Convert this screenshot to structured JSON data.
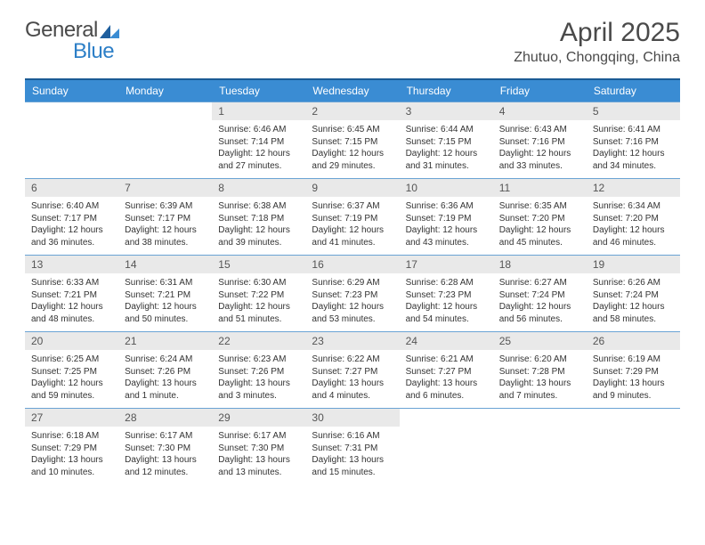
{
  "logo": {
    "text1": "General",
    "text2": "Blue"
  },
  "title": "April 2025",
  "location": "Zhutuo, Chongqing, China",
  "colors": {
    "header_bg": "#3a8cd3",
    "header_border_top": "#1a5a94",
    "cell_border": "#6aa3d4",
    "daynum_bg": "#e9e9e9",
    "logo_gray": "#4a4a4a",
    "logo_blue": "#2d7fc7"
  },
  "weekdays": [
    "Sunday",
    "Monday",
    "Tuesday",
    "Wednesday",
    "Thursday",
    "Friday",
    "Saturday"
  ],
  "weeks": [
    [
      {
        "empty": true
      },
      {
        "empty": true
      },
      {
        "num": "1",
        "sunrise": "6:46 AM",
        "sunset": "7:14 PM",
        "daylight": "12 hours and 27 minutes."
      },
      {
        "num": "2",
        "sunrise": "6:45 AM",
        "sunset": "7:15 PM",
        "daylight": "12 hours and 29 minutes."
      },
      {
        "num": "3",
        "sunrise": "6:44 AM",
        "sunset": "7:15 PM",
        "daylight": "12 hours and 31 minutes."
      },
      {
        "num": "4",
        "sunrise": "6:43 AM",
        "sunset": "7:16 PM",
        "daylight": "12 hours and 33 minutes."
      },
      {
        "num": "5",
        "sunrise": "6:41 AM",
        "sunset": "7:16 PM",
        "daylight": "12 hours and 34 minutes."
      }
    ],
    [
      {
        "num": "6",
        "sunrise": "6:40 AM",
        "sunset": "7:17 PM",
        "daylight": "12 hours and 36 minutes."
      },
      {
        "num": "7",
        "sunrise": "6:39 AM",
        "sunset": "7:17 PM",
        "daylight": "12 hours and 38 minutes."
      },
      {
        "num": "8",
        "sunrise": "6:38 AM",
        "sunset": "7:18 PM",
        "daylight": "12 hours and 39 minutes."
      },
      {
        "num": "9",
        "sunrise": "6:37 AM",
        "sunset": "7:19 PM",
        "daylight": "12 hours and 41 minutes."
      },
      {
        "num": "10",
        "sunrise": "6:36 AM",
        "sunset": "7:19 PM",
        "daylight": "12 hours and 43 minutes."
      },
      {
        "num": "11",
        "sunrise": "6:35 AM",
        "sunset": "7:20 PM",
        "daylight": "12 hours and 45 minutes."
      },
      {
        "num": "12",
        "sunrise": "6:34 AM",
        "sunset": "7:20 PM",
        "daylight": "12 hours and 46 minutes."
      }
    ],
    [
      {
        "num": "13",
        "sunrise": "6:33 AM",
        "sunset": "7:21 PM",
        "daylight": "12 hours and 48 minutes."
      },
      {
        "num": "14",
        "sunrise": "6:31 AM",
        "sunset": "7:21 PM",
        "daylight": "12 hours and 50 minutes."
      },
      {
        "num": "15",
        "sunrise": "6:30 AM",
        "sunset": "7:22 PM",
        "daylight": "12 hours and 51 minutes."
      },
      {
        "num": "16",
        "sunrise": "6:29 AM",
        "sunset": "7:23 PM",
        "daylight": "12 hours and 53 minutes."
      },
      {
        "num": "17",
        "sunrise": "6:28 AM",
        "sunset": "7:23 PM",
        "daylight": "12 hours and 54 minutes."
      },
      {
        "num": "18",
        "sunrise": "6:27 AM",
        "sunset": "7:24 PM",
        "daylight": "12 hours and 56 minutes."
      },
      {
        "num": "19",
        "sunrise": "6:26 AM",
        "sunset": "7:24 PM",
        "daylight": "12 hours and 58 minutes."
      }
    ],
    [
      {
        "num": "20",
        "sunrise": "6:25 AM",
        "sunset": "7:25 PM",
        "daylight": "12 hours and 59 minutes."
      },
      {
        "num": "21",
        "sunrise": "6:24 AM",
        "sunset": "7:26 PM",
        "daylight": "13 hours and 1 minute."
      },
      {
        "num": "22",
        "sunrise": "6:23 AM",
        "sunset": "7:26 PM",
        "daylight": "13 hours and 3 minutes."
      },
      {
        "num": "23",
        "sunrise": "6:22 AM",
        "sunset": "7:27 PM",
        "daylight": "13 hours and 4 minutes."
      },
      {
        "num": "24",
        "sunrise": "6:21 AM",
        "sunset": "7:27 PM",
        "daylight": "13 hours and 6 minutes."
      },
      {
        "num": "25",
        "sunrise": "6:20 AM",
        "sunset": "7:28 PM",
        "daylight": "13 hours and 7 minutes."
      },
      {
        "num": "26",
        "sunrise": "6:19 AM",
        "sunset": "7:29 PM",
        "daylight": "13 hours and 9 minutes."
      }
    ],
    [
      {
        "num": "27",
        "sunrise": "6:18 AM",
        "sunset": "7:29 PM",
        "daylight": "13 hours and 10 minutes."
      },
      {
        "num": "28",
        "sunrise": "6:17 AM",
        "sunset": "7:30 PM",
        "daylight": "13 hours and 12 minutes."
      },
      {
        "num": "29",
        "sunrise": "6:17 AM",
        "sunset": "7:30 PM",
        "daylight": "13 hours and 13 minutes."
      },
      {
        "num": "30",
        "sunrise": "6:16 AM",
        "sunset": "7:31 PM",
        "daylight": "13 hours and 15 minutes."
      },
      {
        "empty": true
      },
      {
        "empty": true
      },
      {
        "empty": true
      }
    ]
  ],
  "labels": {
    "sunrise": "Sunrise:",
    "sunset": "Sunset:",
    "daylight": "Daylight:"
  }
}
